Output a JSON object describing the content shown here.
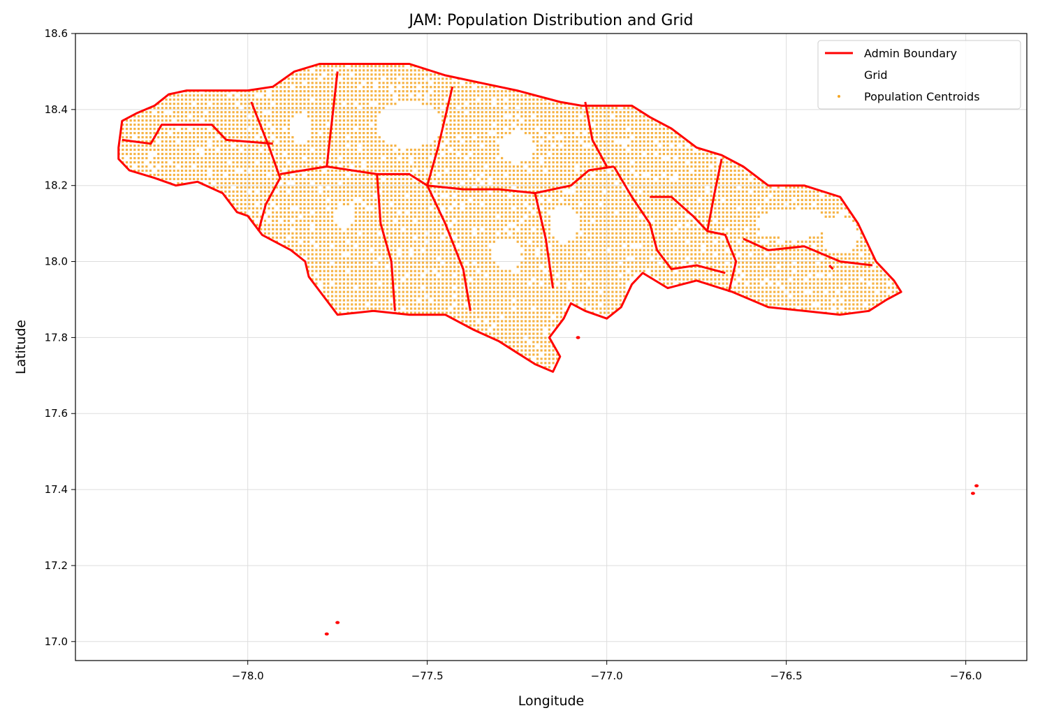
{
  "chart_data": {
    "type": "map",
    "title": "JAM: Population Distribution and Grid",
    "xlabel": "Longitude",
    "ylabel": "Latitude",
    "xlim": [
      -78.48,
      -75.83
    ],
    "ylim": [
      16.95,
      18.6
    ],
    "xticks": [
      -78.0,
      -77.5,
      -77.0,
      -76.5,
      -76.0
    ],
    "xtick_labels": [
      "−78.0",
      "−77.5",
      "−77.0",
      "−76.5",
      "−76.0"
    ],
    "yticks": [
      17.0,
      17.2,
      17.4,
      17.6,
      17.8,
      18.0,
      18.2,
      18.4,
      18.6
    ],
    "ytick_labels": [
      "17.0",
      "17.2",
      "17.4",
      "17.6",
      "17.8",
      "18.0",
      "18.2",
      "18.4",
      "18.6"
    ],
    "grid": true,
    "legend_position": "top-right",
    "legend": [
      {
        "label": "Admin Boundary",
        "kind": "line",
        "color": "#ff0000"
      },
      {
        "label": "Grid",
        "kind": "none",
        "color": "none"
      },
      {
        "label": "Population Centroids",
        "kind": "points",
        "color": "#f5a623"
      }
    ],
    "colors": {
      "boundary": "#ff0000",
      "population": "#f5a623",
      "grid": "#dddddd"
    },
    "outline": [
      [
        -78.36,
        18.27
      ],
      [
        -78.33,
        18.24
      ],
      [
        -78.26,
        18.22
      ],
      [
        -78.2,
        18.2
      ],
      [
        -78.14,
        18.21
      ],
      [
        -78.07,
        18.18
      ],
      [
        -78.03,
        18.13
      ],
      [
        -78.0,
        18.12
      ],
      [
        -77.96,
        18.07
      ],
      [
        -77.88,
        18.03
      ],
      [
        -77.84,
        18.0
      ],
      [
        -77.83,
        17.96
      ],
      [
        -77.79,
        17.91
      ],
      [
        -77.75,
        17.86
      ],
      [
        -77.65,
        17.87
      ],
      [
        -77.55,
        17.86
      ],
      [
        -77.45,
        17.86
      ],
      [
        -77.37,
        17.82
      ],
      [
        -77.3,
        17.79
      ],
      [
        -77.25,
        17.76
      ],
      [
        -77.2,
        17.73
      ],
      [
        -77.15,
        17.71
      ],
      [
        -77.13,
        17.75
      ],
      [
        -77.16,
        17.8
      ],
      [
        -77.12,
        17.85
      ],
      [
        -77.1,
        17.89
      ],
      [
        -77.06,
        17.87
      ],
      [
        -77.0,
        17.85
      ],
      [
        -76.96,
        17.88
      ],
      [
        -76.93,
        17.94
      ],
      [
        -76.9,
        17.97
      ],
      [
        -76.83,
        17.93
      ],
      [
        -76.75,
        17.95
      ],
      [
        -76.65,
        17.92
      ],
      [
        -76.55,
        17.88
      ],
      [
        -76.45,
        17.87
      ],
      [
        -76.35,
        17.86
      ],
      [
        -76.27,
        17.87
      ],
      [
        -76.22,
        17.9
      ],
      [
        -76.18,
        17.92
      ],
      [
        -76.2,
        17.95
      ],
      [
        -76.25,
        18.0
      ],
      [
        -76.3,
        18.1
      ],
      [
        -76.35,
        18.17
      ],
      [
        -76.45,
        18.2
      ],
      [
        -76.55,
        18.2
      ],
      [
        -76.62,
        18.25
      ],
      [
        -76.68,
        18.28
      ],
      [
        -76.75,
        18.3
      ],
      [
        -76.82,
        18.35
      ],
      [
        -76.88,
        18.38
      ],
      [
        -76.93,
        18.41
      ],
      [
        -77.0,
        18.41
      ],
      [
        -77.07,
        18.41
      ],
      [
        -77.13,
        18.42
      ],
      [
        -77.25,
        18.45
      ],
      [
        -77.35,
        18.47
      ],
      [
        -77.45,
        18.49
      ],
      [
        -77.55,
        18.52
      ],
      [
        -77.7,
        18.52
      ],
      [
        -77.8,
        18.52
      ],
      [
        -77.87,
        18.5
      ],
      [
        -77.93,
        18.46
      ],
      [
        -78.0,
        18.45
      ],
      [
        -78.1,
        18.45
      ],
      [
        -78.17,
        18.45
      ],
      [
        -78.22,
        18.44
      ],
      [
        -78.26,
        18.41
      ],
      [
        -78.31,
        18.39
      ],
      [
        -78.35,
        18.37
      ],
      [
        -78.36,
        18.3
      ],
      [
        -78.36,
        18.27
      ]
    ],
    "admin_lines": [
      [
        [
          -78.35,
          18.32
        ],
        [
          -78.27,
          18.31
        ],
        [
          -78.24,
          18.36
        ],
        [
          -78.1,
          18.36
        ],
        [
          -78.06,
          18.32
        ],
        [
          -77.93,
          18.31
        ]
      ],
      [
        [
          -77.99,
          18.42
        ],
        [
          -77.94,
          18.3
        ],
        [
          -77.91,
          18.22
        ],
        [
          -77.95,
          18.15
        ],
        [
          -77.97,
          18.08
        ]
      ],
      [
        [
          -77.91,
          18.23
        ],
        [
          -77.78,
          18.25
        ],
        [
          -77.64,
          18.23
        ],
        [
          -77.55,
          18.23
        ],
        [
          -77.5,
          18.2
        ],
        [
          -77.4,
          18.19
        ],
        [
          -77.3,
          18.19
        ],
        [
          -77.2,
          18.18
        ],
        [
          -77.1,
          18.2
        ],
        [
          -77.05,
          18.24
        ],
        [
          -76.98,
          18.25
        ]
      ],
      [
        [
          -77.75,
          18.5
        ],
        [
          -77.78,
          18.25
        ]
      ],
      [
        [
          -77.64,
          18.23
        ],
        [
          -77.63,
          18.1
        ],
        [
          -77.6,
          18.0
        ],
        [
          -77.59,
          17.87
        ]
      ],
      [
        [
          -77.5,
          18.2
        ],
        [
          -77.45,
          18.1
        ],
        [
          -77.4,
          17.98
        ],
        [
          -77.38,
          17.87
        ]
      ],
      [
        [
          -77.43,
          18.46
        ],
        [
          -77.47,
          18.3
        ],
        [
          -77.5,
          18.2
        ]
      ],
      [
        [
          -77.2,
          18.18
        ],
        [
          -77.17,
          18.06
        ],
        [
          -77.15,
          17.93
        ]
      ],
      [
        [
          -77.06,
          18.42
        ],
        [
          -77.04,
          18.32
        ],
        [
          -77.0,
          18.25
        ]
      ],
      [
        [
          -76.98,
          18.25
        ],
        [
          -76.93,
          18.17
        ],
        [
          -76.88,
          18.1
        ],
        [
          -76.86,
          18.03
        ],
        [
          -76.82,
          17.98
        ],
        [
          -76.75,
          17.99
        ],
        [
          -76.67,
          17.97
        ]
      ],
      [
        [
          -76.88,
          18.17
        ],
        [
          -76.82,
          18.17
        ],
        [
          -76.76,
          18.12
        ],
        [
          -76.72,
          18.08
        ],
        [
          -76.67,
          18.07
        ],
        [
          -76.64,
          18.0
        ],
        [
          -76.66,
          17.92
        ]
      ],
      [
        [
          -76.72,
          18.08
        ],
        [
          -76.7,
          18.18
        ],
        [
          -76.68,
          18.27
        ]
      ],
      [
        [
          -76.62,
          18.06
        ],
        [
          -76.55,
          18.03
        ],
        [
          -76.45,
          18.04
        ],
        [
          -76.35,
          18.0
        ],
        [
          -76.26,
          17.99
        ]
      ],
      [
        [
          -76.38,
          17.99
        ],
        [
          -76.37,
          17.98
        ]
      ]
    ],
    "islands": [
      [
        -77.08,
        17.8
      ],
      [
        -77.78,
        17.02
      ],
      [
        -77.75,
        17.05
      ],
      [
        -75.98,
        17.39
      ],
      [
        -75.97,
        17.41
      ]
    ]
  }
}
